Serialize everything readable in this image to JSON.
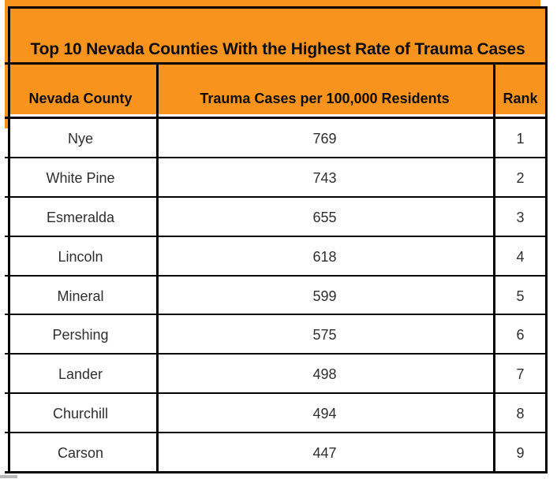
{
  "colors": {
    "accent_orange": "#F8941E",
    "border_black": "#000000",
    "data_text": "#2e2e2e"
  },
  "chart_data": {
    "type": "table",
    "title": "Top 10 Nevada Counties With the Highest Rate of Trauma Cases",
    "columns": [
      "Nevada County",
      "Trauma Cases per 100,000 Residents",
      "Rank"
    ],
    "rows": [
      [
        "Nye",
        769,
        1
      ],
      [
        "White Pine",
        743,
        2
      ],
      [
        "Esmeralda",
        655,
        3
      ],
      [
        "Lincoln",
        618,
        4
      ],
      [
        "Mineral",
        599,
        5
      ],
      [
        "Pershing",
        575,
        6
      ],
      [
        "Lander",
        498,
        7
      ],
      [
        "Churchill",
        494,
        8
      ],
      [
        "Carson",
        447,
        9
      ]
    ],
    "note_layout": "title row and column-header row have orange background; header cells have a white underline above the black rule; 9 of the top-10 data rows are visible, the 10th is cut off at the bottom edge"
  }
}
